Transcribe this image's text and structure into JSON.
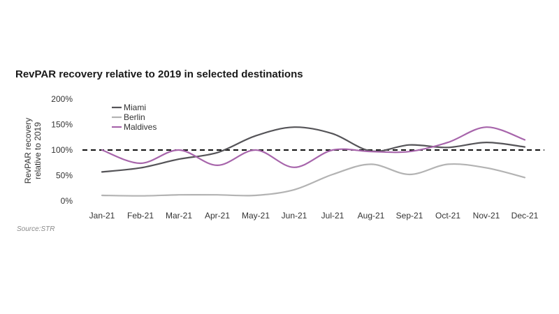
{
  "chart_data": {
    "type": "line",
    "title": "RevPAR recovery relative to 2019 in selected destinations",
    "ylabel_line1": "RevPAR recovery",
    "ylabel_line2": "relative to 2019",
    "xlabel": "",
    "source": "Source:STR",
    "categories": [
      "Jan-21",
      "Feb-21",
      "Mar-21",
      "Apr-21",
      "May-21",
      "Jun-21",
      "Jul-21",
      "Aug-21",
      "Sep-21",
      "Oct-21",
      "Nov-21",
      "Dec-21"
    ],
    "y_ticks": [
      "0%",
      "50%",
      "100%",
      "150%",
      "200%"
    ],
    "y_tick_values": [
      0,
      50,
      100,
      150,
      200
    ],
    "ylim": [
      0,
      200
    ],
    "reference_line": 100,
    "grid": false,
    "legend_position": "top-left",
    "series": [
      {
        "name": "Miami",
        "color": "#555458",
        "values": [
          57,
          65,
          82,
          95,
          128,
          145,
          132,
          98,
          110,
          105,
          115,
          106
        ]
      },
      {
        "name": "Berlin",
        "color": "#b3b3b3",
        "values": [
          11,
          10,
          12,
          12,
          11,
          22,
          52,
          72,
          52,
          72,
          65,
          46
        ]
      },
      {
        "name": "Maldives",
        "color": "#a765ab",
        "values": [
          100,
          74,
          100,
          70,
          100,
          66,
          100,
          97,
          97,
          115,
          145,
          120
        ]
      }
    ]
  }
}
